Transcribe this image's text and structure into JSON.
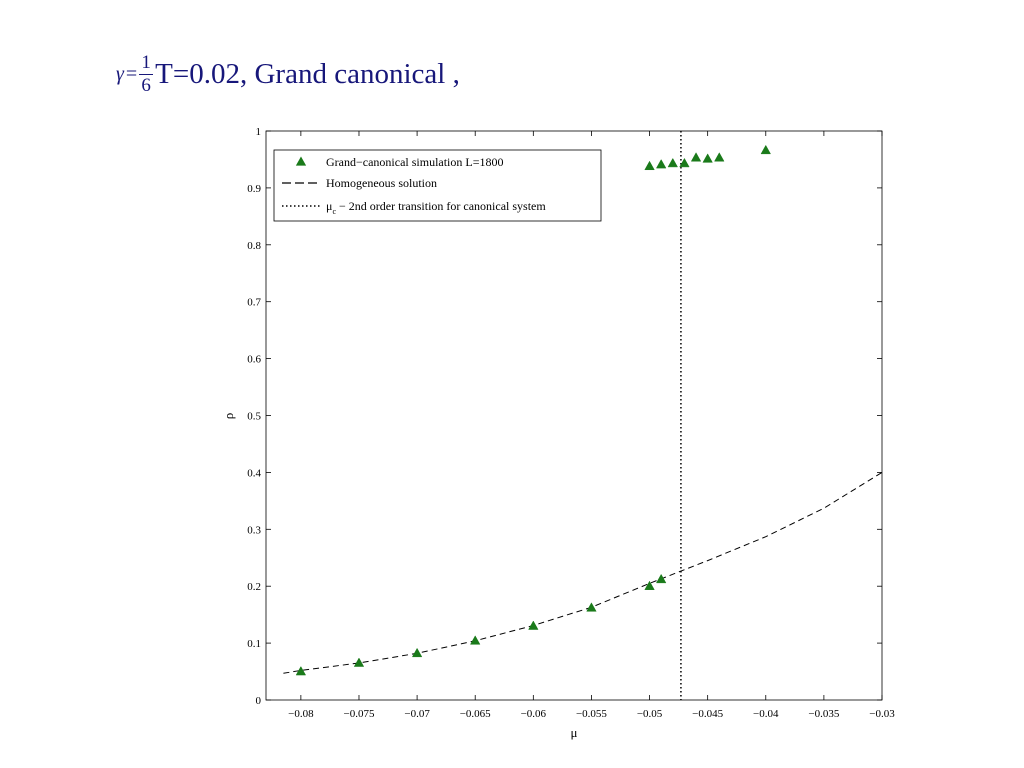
{
  "slide": {
    "title_gamma": "γ",
    "title_equals": "=",
    "title_numerator": "1",
    "title_denominator": "6",
    "title_text": "T=0.02, Grand canonical ,",
    "title_color": "#17177a"
  },
  "chart_data": {
    "type": "scatter",
    "xlabel": "μ",
    "ylabel": "ρ",
    "xlim": [
      -0.083,
      -0.03
    ],
    "ylim": [
      0,
      1
    ],
    "x_ticks": [
      -0.08,
      -0.075,
      -0.07,
      -0.065,
      -0.06,
      -0.055,
      -0.05,
      -0.045,
      -0.04,
      -0.035,
      -0.03
    ],
    "x_tick_labels": [
      "−0.08",
      "−0.075",
      "−0.07",
      "−0.065",
      "−0.06",
      "−0.055",
      "−0.05",
      "−0.045",
      "−0.04",
      "−0.035",
      "−0.03"
    ],
    "y_ticks": [
      0,
      0.1,
      0.2,
      0.3,
      0.4,
      0.5,
      0.6,
      0.7,
      0.8,
      0.9,
      1
    ],
    "y_tick_labels": [
      "0",
      "0.1",
      "0.2",
      "0.3",
      "0.4",
      "0.5",
      "0.6",
      "0.7",
      "0.8",
      "0.9",
      "1"
    ],
    "grid": false,
    "legend_position": "top-left",
    "series": [
      {
        "name": "Grand−canonical simulation L=1800",
        "kind": "markers",
        "marker": "triangle",
        "color": "#1a7a1a",
        "x": [
          -0.08,
          -0.075,
          -0.07,
          -0.065,
          -0.06,
          -0.055,
          -0.05,
          -0.049,
          -0.05,
          -0.049,
          -0.048,
          -0.047,
          -0.046,
          -0.045,
          -0.044,
          -0.04
        ],
        "y": [
          0.05,
          0.065,
          0.082,
          0.104,
          0.13,
          0.162,
          0.2,
          0.212,
          0.938,
          0.941,
          0.943,
          0.943,
          0.953,
          0.951,
          0.953,
          0.966
        ]
      },
      {
        "name": "Homogeneous solution",
        "kind": "line",
        "dash": "dashed",
        "color": "#000000",
        "x": [
          -0.0815,
          -0.08,
          -0.075,
          -0.07,
          -0.065,
          -0.06,
          -0.055,
          -0.05,
          -0.045,
          -0.04,
          -0.035,
          -0.03
        ],
        "y": [
          0.047,
          0.052,
          0.065,
          0.082,
          0.104,
          0.131,
          0.163,
          0.205,
          0.245,
          0.287,
          0.337,
          0.4
        ]
      },
      {
        "name": "μ",
        "name_subscript": "c",
        "name_suffix": " − 2nd order transition for canonical system",
        "kind": "vline",
        "dash": "dotted",
        "color": "#000000",
        "x": -0.0473
      }
    ]
  }
}
